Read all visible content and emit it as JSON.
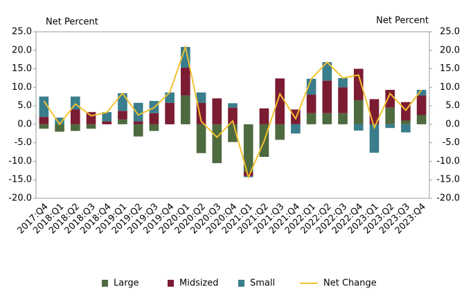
{
  "chart_data": {
    "type": "bar",
    "stacked": true,
    "y_label": "Net Percent",
    "y2_label": "Net Percent",
    "categories": [
      "2017:Q4",
      "2018:Q1",
      "2018:Q2",
      "2018:Q3",
      "2018:Q4",
      "2019:Q1",
      "2019:Q2",
      "2019:Q3",
      "2019:Q4",
      "2020:Q1",
      "2020:Q2",
      "2020:Q3",
      "2020:Q4",
      "2021:Q1",
      "2021:Q2",
      "2021:Q3",
      "2021:Q4",
      "2022:Q1",
      "2022:Q2",
      "2022:Q3",
      "2022:Q4",
      "2023:Q1",
      "2023:Q2",
      "2023:Q3",
      "2023:Q4"
    ],
    "series": [
      {
        "name": "Large",
        "color": "#4e6a3f",
        "values": [
          -1.2,
          -2,
          -1.8,
          -1.2,
          0,
          1.3,
          -3.3,
          -1.8,
          0,
          7.8,
          -7.8,
          -10.5,
          -4.8,
          -13,
          -8.8,
          -4.2,
          0,
          3,
          3,
          3,
          6.5,
          0,
          4.5,
          1,
          2.5
        ]
      },
      {
        "name": "Midsized",
        "color": "#7b1c33",
        "values": [
          2,
          0,
          4,
          3.3,
          0.8,
          2.3,
          0.8,
          3,
          5.8,
          7.5,
          5.8,
          7,
          4.5,
          -1,
          4.3,
          12.4,
          4,
          5,
          8.8,
          7,
          8.5,
          6.8,
          4.8,
          5,
          5.3
        ]
      },
      {
        "name": "Small",
        "color": "#3a7d8c",
        "values": [
          5.5,
          1.8,
          3.5,
          0,
          2.5,
          4.8,
          5,
          3.3,
          2.8,
          5.6,
          2.8,
          0,
          1.2,
          -0.3,
          0,
          0,
          -2.5,
          4.3,
          5,
          2.5,
          -1.7,
          -7.7,
          -1,
          -2.2,
          1.5
        ]
      },
      {
        "name": "Net Change",
        "type": "line",
        "color": "#f2c12e",
        "values": [
          6.3,
          0,
          5.5,
          2.3,
          3.2,
          8.4,
          2.5,
          4.5,
          8.6,
          20.9,
          0.8,
          -3.5,
          0.9,
          -14.3,
          -4.5,
          8.2,
          1.5,
          12.3,
          16.8,
          12.5,
          13.3,
          -0.9,
          8.3,
          3.8,
          9.3
        ]
      }
    ],
    "ylim": [
      -20,
      25
    ],
    "yticks": [
      {
        "value": -20,
        "label": "-20.0"
      },
      {
        "value": -15,
        "label": "-15.0"
      },
      {
        "value": -10,
        "label": "-10.0"
      },
      {
        "value": -5,
        "label": "-5.0"
      },
      {
        "value": 0,
        "label": "0.0"
      },
      {
        "value": 5,
        "label": "5.0"
      },
      {
        "value": 10,
        "label": "10.0"
      },
      {
        "value": 15,
        "label": "15.0"
      },
      {
        "value": 20,
        "label": "20.0"
      },
      {
        "value": 25,
        "label": "25.0"
      }
    ],
    "y2lim": [
      -20,
      25
    ],
    "y2ticks": [
      {
        "value": -20,
        "label": "-20.0"
      },
      {
        "value": -15,
        "label": "-15.0"
      },
      {
        "value": -10,
        "label": "-10.0"
      },
      {
        "value": -5,
        "label": "-5.0"
      },
      {
        "value": 0,
        "label": "0.0"
      },
      {
        "value": 5,
        "label": "5.0"
      },
      {
        "value": 10,
        "label": "10.0"
      },
      {
        "value": 15,
        "label": "15.0"
      },
      {
        "value": 20,
        "label": "20.0"
      },
      {
        "value": 25,
        "label": "25.0"
      }
    ]
  }
}
